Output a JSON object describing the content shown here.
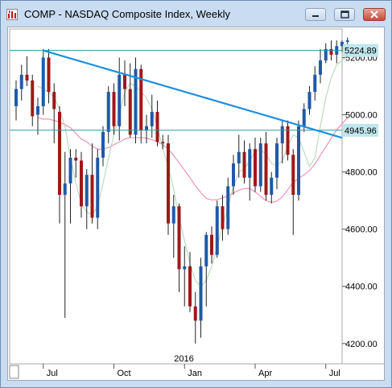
{
  "window": {
    "title": "COMP - NASDAQ Composite Index, Weekly",
    "icons": {
      "app": "chart-app-icon",
      "minimize": "minimize-icon",
      "maximize": "maximize-icon",
      "close": "close-icon"
    }
  },
  "chart_data": {
    "type": "candlestick",
    "symbol": "COMP",
    "title": "COMP - NASDAQ Composite Index, Weekly",
    "interval": "Weekly",
    "xlabel": "",
    "ylabel": "",
    "ylim": [
      4160,
      5300
    ],
    "y_ticks": [
      "5200.00",
      "5000.00",
      "4800.00",
      "4600.00",
      "4400.00",
      "4200.00"
    ],
    "x_month_labels": [
      "Jul",
      "Oct",
      "Jan",
      "Apr",
      "Jul"
    ],
    "x_month_index": [
      5,
      18,
      31,
      44,
      57
    ],
    "year_label": "2016",
    "year_label_index": 31,
    "colors": {
      "up": "#1f5aa8",
      "down": "#a01818",
      "trendline": "#1e8fe0",
      "hline": "#2a9aa8",
      "ma_fast": "#b9d8b9",
      "ma_slow": "#f08ab0",
      "label_box": "#bfe6ec"
    },
    "horizontal_lines": [
      {
        "label": "5224.89",
        "value": 5224.89
      },
      {
        "label": "4945.96",
        "value": 4945.96
      }
    ],
    "trendline": {
      "x1": 5,
      "y1": 5225,
      "x2": 68,
      "y2": 4875
    },
    "moving_average_fast": [
      null,
      null,
      null,
      null,
      5100,
      5090,
      5080,
      5060,
      5020,
      4960,
      4850,
      4760,
      4690,
      4660,
      4650,
      4680,
      4760,
      4850,
      4930,
      5000,
      5080,
      5110,
      5100,
      5080,
      5060,
      5020,
      4960,
      4880,
      4820,
      4740,
      4640,
      4560,
      4480,
      4420,
      4400,
      4420,
      4470,
      4540,
      4610,
      4680,
      4750,
      4800,
      4810,
      4840,
      4870,
      4880,
      4860,
      4830,
      4820,
      4840,
      4890,
      4930,
      4920,
      4870,
      4820,
      4850,
      4960,
      5060,
      5130,
      5175,
      5190,
      5205
    ],
    "moving_average_slow": [
      null,
      null,
      null,
      null,
      4990,
      4985,
      4985,
      4980,
      4975,
      4965,
      4955,
      4935,
      4915,
      4905,
      4890,
      4880,
      4880,
      4885,
      4895,
      4905,
      4915,
      4920,
      4920,
      4920,
      4918,
      4913,
      4905,
      4895,
      4880,
      4858,
      4832,
      4806,
      4780,
      4752,
      4728,
      4708,
      4702,
      4703,
      4709,
      4717,
      4727,
      4736,
      4742,
      4742,
      4730,
      4715,
      4699,
      4694,
      4698,
      4713,
      4738,
      4763,
      4778,
      4790,
      4805,
      4828,
      4858,
      4888,
      4918,
      4948,
      4968,
      4990
    ],
    "ohlc": [
      [
        5030,
        5120,
        4980,
        5090
      ],
      [
        5090,
        5175,
        5050,
        5140
      ],
      [
        5140,
        5205,
        5100,
        5120
      ],
      [
        5120,
        5140,
        4960,
        4995
      ],
      [
        5000,
        5060,
        4930,
        5030
      ],
      [
        5030,
        5230,
        5000,
        5200
      ],
      [
        5200,
        5230,
        5040,
        5080
      ],
      [
        5080,
        5110,
        4900,
        5020
      ],
      [
        5010,
        5030,
        4620,
        4720
      ],
      [
        4720,
        4870,
        4290,
        4760
      ],
      [
        4760,
        4880,
        4620,
        4850
      ],
      [
        4850,
        4880,
        4780,
        4840
      ],
      [
        4840,
        4870,
        4640,
        4680
      ],
      [
        4680,
        4810,
        4600,
        4790
      ],
      [
        4790,
        4900,
        4620,
        4640
      ],
      [
        4640,
        4880,
        4600,
        4850
      ],
      [
        4850,
        4960,
        4820,
        4940
      ],
      [
        4940,
        5100,
        4900,
        5080
      ],
      [
        5080,
        5110,
        4930,
        4960
      ],
      [
        4960,
        5200,
        4910,
        5140
      ],
      [
        5140,
        5190,
        5030,
        5090
      ],
      [
        5090,
        5180,
        4920,
        4930
      ],
      [
        4930,
        5200,
        4900,
        5160
      ],
      [
        5160,
        5175,
        4900,
        4945
      ],
      [
        4945,
        5000,
        4900,
        4960
      ],
      [
        4960,
        5070,
        4920,
        5010
      ],
      [
        5010,
        5050,
        4890,
        4905
      ],
      [
        4905,
        4930,
        4880,
        4900
      ],
      [
        4900,
        4930,
        4580,
        4620
      ],
      [
        4620,
        4720,
        4500,
        4680
      ],
      [
        4680,
        4690,
        4380,
        4460
      ],
      [
        4460,
        4540,
        4330,
        4470
      ],
      [
        4470,
        4520,
        4310,
        4330
      ],
      [
        4330,
        4380,
        4200,
        4280
      ],
      [
        4280,
        4500,
        4220,
        4470
      ],
      [
        4470,
        4590,
        4330,
        4580
      ],
      [
        4580,
        4610,
        4480,
        4510
      ],
      [
        4510,
        4700,
        4500,
        4680
      ],
      [
        4680,
        4720,
        4560,
        4600
      ],
      [
        4600,
        4780,
        4580,
        4750
      ],
      [
        4750,
        4860,
        4720,
        4830
      ],
      [
        4830,
        4930,
        4780,
        4870
      ],
      [
        4870,
        4910,
        4760,
        4780
      ],
      [
        4780,
        4900,
        4700,
        4880
      ],
      [
        4880,
        4920,
        4730,
        4750
      ],
      [
        4750,
        4920,
        4730,
        4900
      ],
      [
        4900,
        4940,
        4700,
        4720
      ],
      [
        4720,
        4800,
        4690,
        4780
      ],
      [
        4780,
        4920,
        4740,
        4900
      ],
      [
        4900,
        4980,
        4830,
        4960
      ],
      [
        4960,
        4980,
        4840,
        4860
      ],
      [
        4860,
        4880,
        4580,
        4720
      ],
      [
        4720,
        4980,
        4700,
        4960
      ],
      [
        4960,
        5040,
        4940,
        5020
      ],
      [
        5020,
        5100,
        5000,
        5080
      ],
      [
        5080,
        5170,
        5050,
        5140
      ],
      [
        5140,
        5230,
        5110,
        5190
      ],
      [
        5190,
        5250,
        5180,
        5230
      ],
      [
        5230,
        5260,
        5190,
        5210
      ],
      [
        5210,
        5260,
        5180,
        5240
      ],
      [
        5240,
        5260,
        5220,
        5255
      ],
      [
        5255,
        5270,
        5240,
        5260
      ]
    ]
  }
}
